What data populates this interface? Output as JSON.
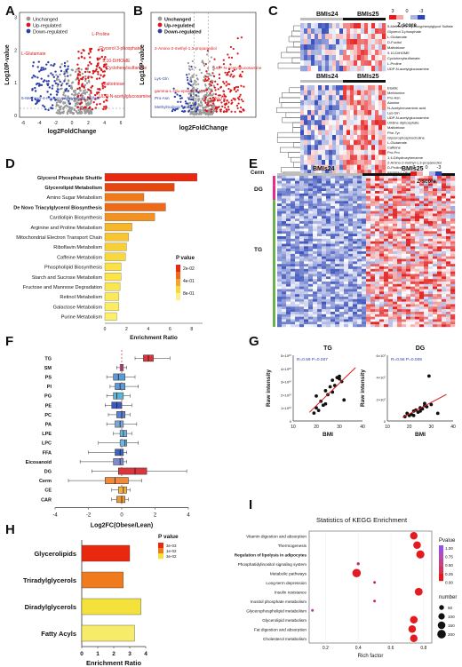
{
  "panel_labels": {
    "A": "A",
    "B": "B",
    "C": "C",
    "D": "D",
    "E": "E",
    "F": "F",
    "G": "G",
    "H": "H",
    "I": "I"
  },
  "colors": {
    "red": "#d7191c",
    "blue": "#2c3ea8",
    "grey": "#9a9a9a",
    "heat_red": "#e41a1c",
    "heat_blue": "#2b43b5",
    "dg_bar": "#e7298a",
    "tg_bar": "#6ab04c"
  },
  "panelA": {
    "legend": [
      "Unchanged",
      "Up-regulated",
      "Down-regulated"
    ],
    "ylabel": "Log10P-value",
    "xlabel": "log2FoldChange",
    "xticks": [
      "-6",
      "-4",
      "-2",
      "0",
      "2",
      "4",
      "6"
    ],
    "yticks": [
      "0",
      "1",
      "2",
      "3"
    ],
    "annotations_up": [
      "L-Proline",
      "Glycerol 3-phosphate",
      "9,10-DiHOME",
      "Cyclohexylsulfamate",
      "Maltotriose",
      "UDP-N-acetylglucosamine"
    ],
    "annotations_down": [
      "L-Glutamate",
      "5-Methoxy-4-Hydroxyphenylglycol Sulfate"
    ]
  },
  "panelB": {
    "legend": [
      "Unchanged",
      "Up-regulated",
      "Down-regulated"
    ],
    "ylabel": "Log10P-value",
    "xlabel": "log2FoldChange",
    "annotations": [
      "2-Amino-2-methyl-1,3-propanediol",
      "UDP-N-acetylglucosamine",
      "Lys-Gln",
      "gamma-L-Glu-epsilon-L-Lys",
      "Pro-Asn",
      "Phe-Tyr",
      "Methylmalonic acid"
    ]
  },
  "panelC": {
    "groups": [
      "BMIs24",
      "BMIs25"
    ],
    "scale_title": "Z-score",
    "scale_ticks": [
      "3",
      "0",
      "-3"
    ],
    "top_rows": [
      "5-Methoxy-4-Hydroxyphenylglycol Sulfate",
      "Glycerol 3-phosphate",
      "L-Glutamate",
      "D-Fucitol",
      "Maltotriose",
      "9,10-DiHOME",
      "Cyclohexylsulfamate",
      "L-Proline",
      "UDP-N-acetylglucosamine"
    ],
    "bottom_rows": [
      "Elaidic",
      "Methionine",
      "Pro-Asn",
      "Alanine",
      "N-Acetylneuraminic acid",
      "Lys-Gln",
      "UDP-N-acetylglucosamine",
      "Uridine diphosphate",
      "Maltotriose",
      "Phe-Tyr",
      "Glycerophosphocholine",
      "L-Glutamate",
      "Caffeine",
      "Pro-Pro",
      "1,4-Dihydroxybenzene",
      "2-Amino-2-methyl-1,3-propanediol",
      "D-Proline",
      "gamma-L-Glu-epsilon-L-Lys",
      "cis-9-Palmitoleic acid",
      "L-Isoleucine"
    ]
  },
  "panelD": {
    "categories": [
      "Glycerol Phosphate Shuttle",
      "Glycerolipid Metabolism",
      "Amino Sugar Metabolism",
      "De Novo Triacylglycerol Biosynthesis",
      "Cardiolipin Biosynthesis",
      "Arginine and Proline Metabolism",
      "Mitochondrial Electron Transport Chain",
      "Riboflavin Metabolism",
      "Caffeine Metabolism",
      "Phospholipid Biosynthesis",
      "Starch and Sucrose Metabolism",
      "Fructose and Mannose Degradation",
      "Retinol Metabolism",
      "Galactose Metabolism",
      "Purine Metabolism"
    ],
    "bold": [
      true,
      true,
      false,
      true,
      false,
      false,
      false,
      false,
      false,
      false,
      false,
      false,
      false,
      false,
      false
    ],
    "values": [
      8.5,
      6.4,
      3.6,
      5.6,
      4.6,
      2.5,
      2.2,
      2.0,
      1.9,
      1.5,
      1.5,
      1.4,
      1.3,
      1.3,
      1.1
    ],
    "colors": [
      "#e8280f",
      "#e8460f",
      "#ee7a1a",
      "#ef6a17",
      "#f29222",
      "#f6b72b",
      "#f8c62f",
      "#f8d036",
      "#f9d83b",
      "#fbe046",
      "#fbe349",
      "#fbe64f",
      "#fce957",
      "#fcec60",
      "#fcef6a"
    ],
    "xlabel": "Enrichment Ratio",
    "xticks": [
      "0",
      "2",
      "4",
      "6",
      "8"
    ],
    "legend_title": "P value",
    "legend_ticks": [
      "2e-02",
      "4e-01",
      "8e-01"
    ]
  },
  "panelE": {
    "groups": [
      "BMIs24",
      "BMIs25"
    ],
    "scale_title": "Z-score",
    "scale_ticks": [
      "3",
      "0",
      "-3"
    ],
    "classes": [
      "Cerm",
      "DG",
      "TG"
    ]
  },
  "panelF": {
    "categories": [
      "TG",
      "SM",
      "PS",
      "PI",
      "PG",
      "PE",
      "PC",
      "PA",
      "LPE",
      "LPC",
      "FFA",
      "Eicosanoid",
      "DG",
      "Cerm",
      "CE",
      "CAR"
    ],
    "boxes": [
      [
        0.8,
        1.3,
        1.6,
        1.9,
        2.9
      ],
      [
        -0.3,
        -0.1,
        0.0,
        0.1,
        0.3
      ],
      [
        -0.9,
        -0.5,
        -0.2,
        0.2,
        0.8
      ],
      [
        -0.7,
        -0.4,
        -0.1,
        0.2,
        1.0
      ],
      [
        -0.9,
        -0.5,
        -0.3,
        0.1,
        0.5
      ],
      [
        -1.0,
        -0.6,
        -0.3,
        0.0,
        0.6
      ],
      [
        -0.8,
        -0.3,
        0.0,
        0.2,
        0.5
      ],
      [
        -0.9,
        -0.4,
        -0.1,
        0.1,
        0.9
      ],
      [
        -0.5,
        -0.1,
        0.1,
        0.3,
        0.6
      ],
      [
        -1.4,
        -0.1,
        0.2,
        0.3,
        1.0
      ],
      [
        -2.0,
        -0.4,
        -0.1,
        0.1,
        0.3
      ],
      [
        -2.5,
        -0.5,
        -0.1,
        0.1,
        0.3
      ],
      [
        -1.8,
        -0.2,
        0.8,
        1.5,
        3.9
      ],
      [
        -3.2,
        -1.0,
        -0.4,
        0.4,
        1.2
      ],
      [
        -0.6,
        -0.2,
        0.1,
        0.3,
        0.5
      ],
      [
        -0.6,
        -0.3,
        0.0,
        0.2,
        0.4
      ]
    ],
    "colors": [
      "#d9353b",
      "#e7549a",
      "#5b9bd5",
      "#5b9bd5",
      "#5bb3d5",
      "#3b59c4",
      "#5c7fd0",
      "#7aa7d8",
      "#6fb5dd",
      "#6fb5dd",
      "#3e63c0",
      "#7e8bd0",
      "#d9353b",
      "#ef8a3a",
      "#f1b13c",
      "#e89b35"
    ],
    "xlabel": "Log2FC(Obese/Lean)",
    "xlim": [
      -4,
      4
    ],
    "xticks": [
      "-4",
      "-2",
      "0",
      "2",
      "4"
    ]
  },
  "panelG": {
    "plots": [
      {
        "title": "TG",
        "stat": "R=0.59 P=0.007",
        "xlabel": "BMI",
        "ylabel": "Raw intensity",
        "xticks": [
          "10",
          "20",
          "30",
          "40"
        ],
        "yticks": [
          "0",
          "1×10¹⁰",
          "2×10¹⁰",
          "3×10¹⁰",
          "4×10¹⁰",
          "5×10¹⁰"
        ],
        "x": [
          19,
          20,
          21,
          22,
          23,
          24,
          25,
          26,
          27,
          28,
          29,
          30,
          31,
          32,
          20,
          24,
          27,
          30
        ],
        "y": [
          0.6,
          1.0,
          0.8,
          1.5,
          1.2,
          2.3,
          2.0,
          2.6,
          3.1,
          2.7,
          3.3,
          3.2,
          3.0,
          1.6,
          1.9,
          1.3,
          2.2,
          3.4
        ]
      },
      {
        "title": "DG",
        "stat": "R=0.56 P=0.009",
        "xlabel": "BMI",
        "ylabel": "Raw intensity",
        "xticks": [
          "10",
          "20",
          "30",
          "40"
        ],
        "yticks": [
          "0",
          "2×10⁷",
          "4×10⁷",
          "6×10⁷"
        ],
        "x": [
          18,
          19,
          20,
          21,
          22,
          23,
          24,
          25,
          26,
          27,
          28,
          29,
          30,
          22,
          25,
          27,
          33
        ],
        "y": [
          0.4,
          0.7,
          0.5,
          0.6,
          0.9,
          1.0,
          0.8,
          1.2,
          1.1,
          1.6,
          1.3,
          4.1,
          1.5,
          0.5,
          0.9,
          1.4,
          0.7
        ]
      }
    ]
  },
  "panelH": {
    "categories": [
      "Glycerolipids",
      "Triradylglycerols",
      "Diradylglycerols",
      "Fatty Acyls"
    ],
    "values": [
      3.0,
      2.6,
      3.7,
      3.3
    ],
    "colors": [
      "#e8280f",
      "#f07a1e",
      "#f4e23c",
      "#f7ec6a"
    ],
    "xlabel": "Enrichment Ratio",
    "xticks": [
      "0",
      "1",
      "2",
      "3",
      "4"
    ],
    "legend_title": "P value",
    "legend_ticks": [
      "3e-03",
      "1e-02",
      "3e-02"
    ]
  },
  "panelI": {
    "title": "Statistics of KEGG Enrichment",
    "categories": [
      "Vitamin digestion and absorption",
      "Thermogenesis",
      "Regulation of lipolysis in adipocytes",
      "Phosphatidylinositol signaling system",
      "Metabolic pathways",
      "Long-term depression",
      "Insulin resistance",
      "Inositol phosphate metabolism",
      "Glycerophospholipid metabolism",
      "Glycerolipid metabolism",
      "Fat digestion and absorption",
      "Cholesterol metabolism"
    ],
    "bold": [
      false,
      false,
      true,
      false,
      false,
      false,
      false,
      false,
      false,
      false,
      false,
      false
    ],
    "rich_factor": [
      0.74,
      0.76,
      0.78,
      0.4,
      0.39,
      0.5,
      0.77,
      0.5,
      0.12,
      0.74,
      0.73,
      0.74
    ],
    "number": [
      90,
      95,
      110,
      8,
      120,
      5,
      100,
      5,
      6,
      95,
      95,
      90
    ],
    "pvalue": [
      0.02,
      0.03,
      0.01,
      0.3,
      0.05,
      0.2,
      0.03,
      0.2,
      0.7,
      0.02,
      0.02,
      0.02
    ],
    "xlabel": "Rich factor",
    "xticks": [
      "0.2",
      "0.4",
      "0.6",
      "0.8"
    ],
    "legend_p_title": "Pvalue",
    "legend_p_ticks": [
      "1.00",
      "0.75",
      "0.50",
      "0.25",
      "0.00"
    ],
    "legend_n_title": "number",
    "legend_n_ticks": [
      "50",
      "100",
      "150",
      "200"
    ]
  }
}
